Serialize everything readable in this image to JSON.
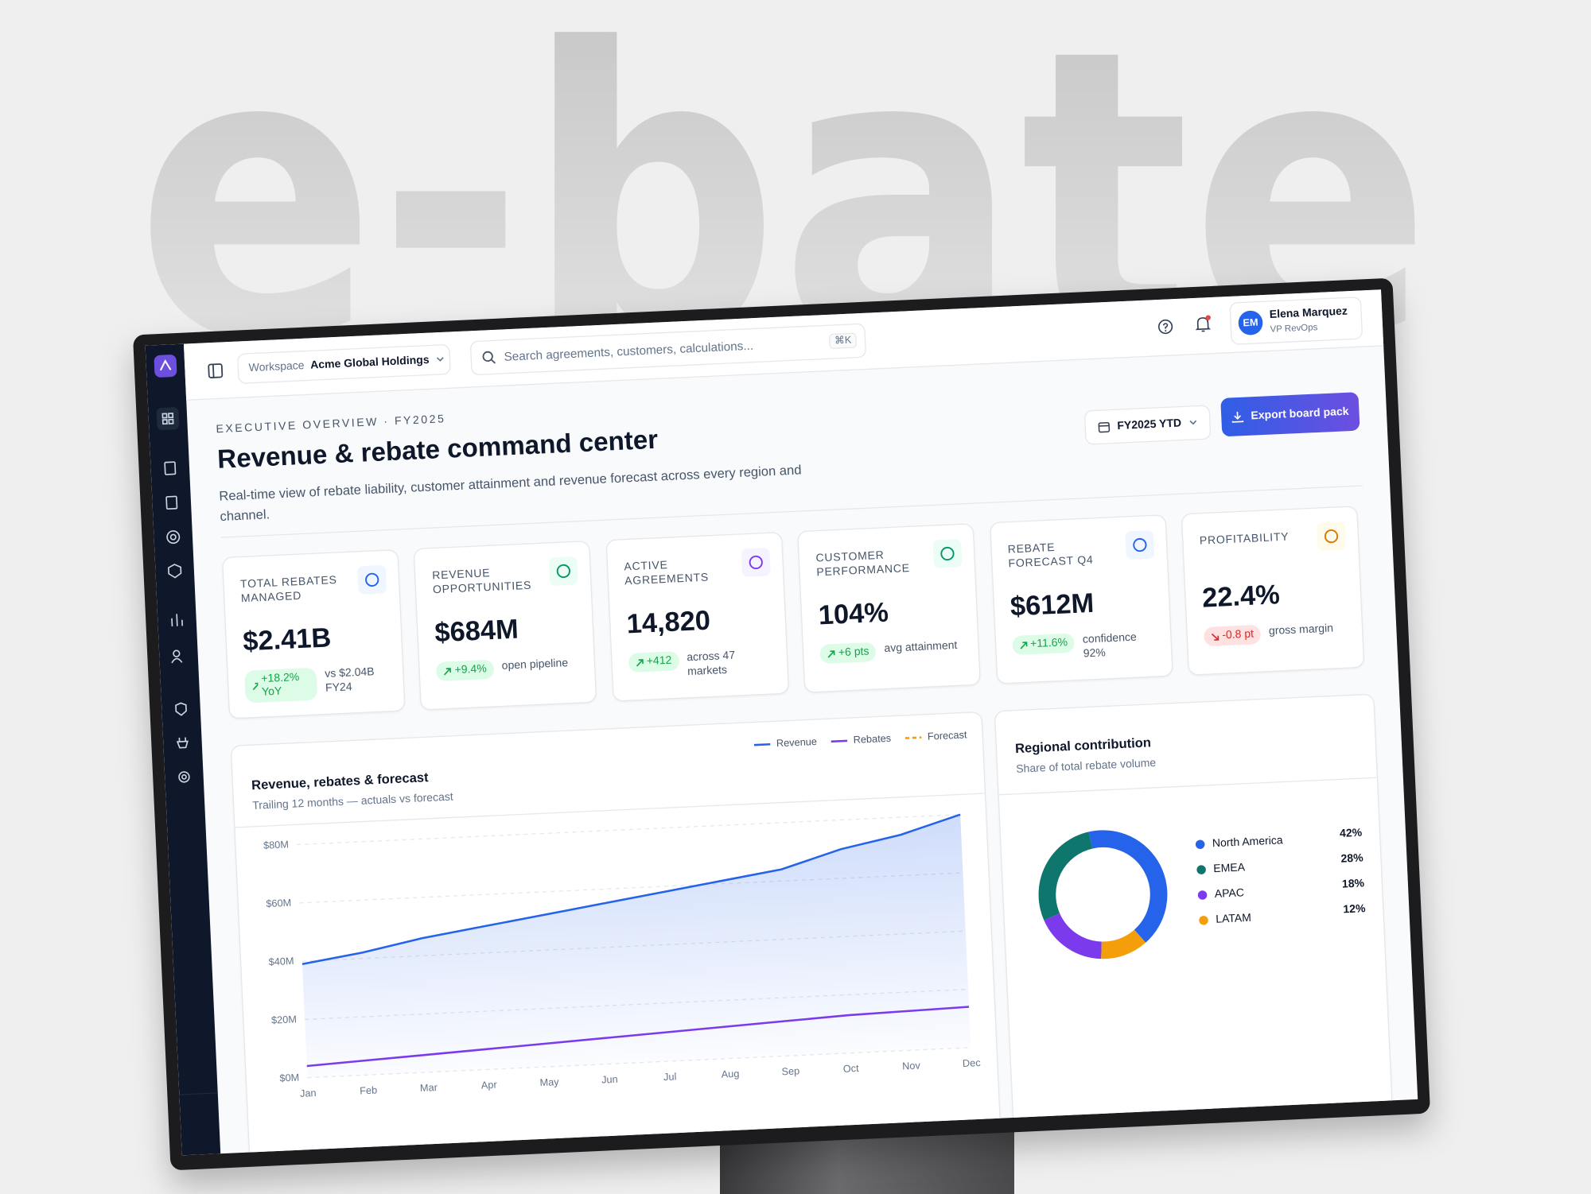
{
  "brand": "e-bate",
  "topbar": {
    "workspace_label": "Workspace",
    "workspace_name": "Acme Global Holdings",
    "search_placeholder": "Search agreements, customers, calculations...",
    "search_shortcut": "⌘K",
    "user_initials": "EM",
    "user_name": "Elena Marquez",
    "user_role": "VP RevOps"
  },
  "header": {
    "eyebrow": "EXECUTIVE OVERVIEW · FY2025",
    "title": "Revenue & rebate command center",
    "subtitle": "Real-time view of rebate liability, customer attainment and revenue forecast across every region and channel.",
    "period": "FY2025 YTD",
    "export": "Export board pack"
  },
  "kpis": [
    {
      "label": "TOTAL REBATES MANAGED",
      "value": "$2.41B",
      "delta": "+18.2% YoY",
      "note": "vs $2.04B FY24",
      "trend": "up"
    },
    {
      "label": "REVENUE OPPORTUNITIES",
      "value": "$684M",
      "delta": "+9.4%",
      "note": "open pipeline",
      "trend": "up"
    },
    {
      "label": "ACTIVE AGREEMENTS",
      "value": "14,820",
      "delta": "+412",
      "note": "across 47 markets",
      "trend": "up"
    },
    {
      "label": "CUSTOMER PERFORMANCE",
      "value": "104%",
      "delta": "+6 pts",
      "note": "avg attainment",
      "trend": "up"
    },
    {
      "label": "REBATE FORECAST Q4",
      "value": "$612M",
      "delta": "+11.6%",
      "note": "confidence 92%",
      "trend": "up"
    },
    {
      "label": "PROFITABILITY",
      "value": "22.4%",
      "delta": "-0.8 pt",
      "note": "gross margin",
      "trend": "down"
    }
  ],
  "chart_data": [
    {
      "type": "line",
      "title": "Revenue, rebates & forecast",
      "subtitle": "Trailing 12 months — actuals vs forecast",
      "categories": [
        "Jan",
        "Feb",
        "Mar",
        "Apr",
        "May",
        "Jun",
        "Jul",
        "Aug",
        "Sep",
        "Oct",
        "Nov",
        "Dec"
      ],
      "series": [
        {
          "name": "Revenue",
          "color": "#2563eb",
          "values": [
            39,
            42,
            46,
            49,
            52,
            55,
            58,
            61,
            64,
            70,
            74,
            80
          ]
        },
        {
          "name": "Rebates",
          "color": "#7c3aed",
          "values": [
            4,
            5,
            6,
            7,
            8,
            9,
            10,
            11,
            12,
            13,
            13.5,
            14
          ]
        },
        {
          "name": "Forecast",
          "color": "#f59e0b",
          "values": [
            null,
            null,
            null,
            null,
            null,
            null,
            null,
            null,
            null,
            null,
            null,
            null
          ]
        }
      ],
      "ylim": [
        0,
        90
      ],
      "yticks": [
        {
          "value": 0,
          "label": "$0M"
        },
        {
          "value": 20,
          "label": "$20M"
        },
        {
          "value": 40,
          "label": "$40M"
        },
        {
          "value": 60,
          "label": "$60M"
        },
        {
          "value": 80,
          "label": "$80M"
        }
      ],
      "grid": true
    },
    {
      "type": "donut",
      "title": "Regional contribution",
      "subtitle": "Share of total rebate volume",
      "categories": [
        "North America",
        "EMEA",
        "APAC",
        "LATAM"
      ],
      "values": [
        42,
        28,
        18,
        12
      ],
      "value_labels": [
        "42%",
        "28%",
        "18%",
        "12%"
      ],
      "colors": [
        "#2563eb",
        "#0f766e",
        "#7c3aed",
        "#f59e0b"
      ]
    }
  ]
}
